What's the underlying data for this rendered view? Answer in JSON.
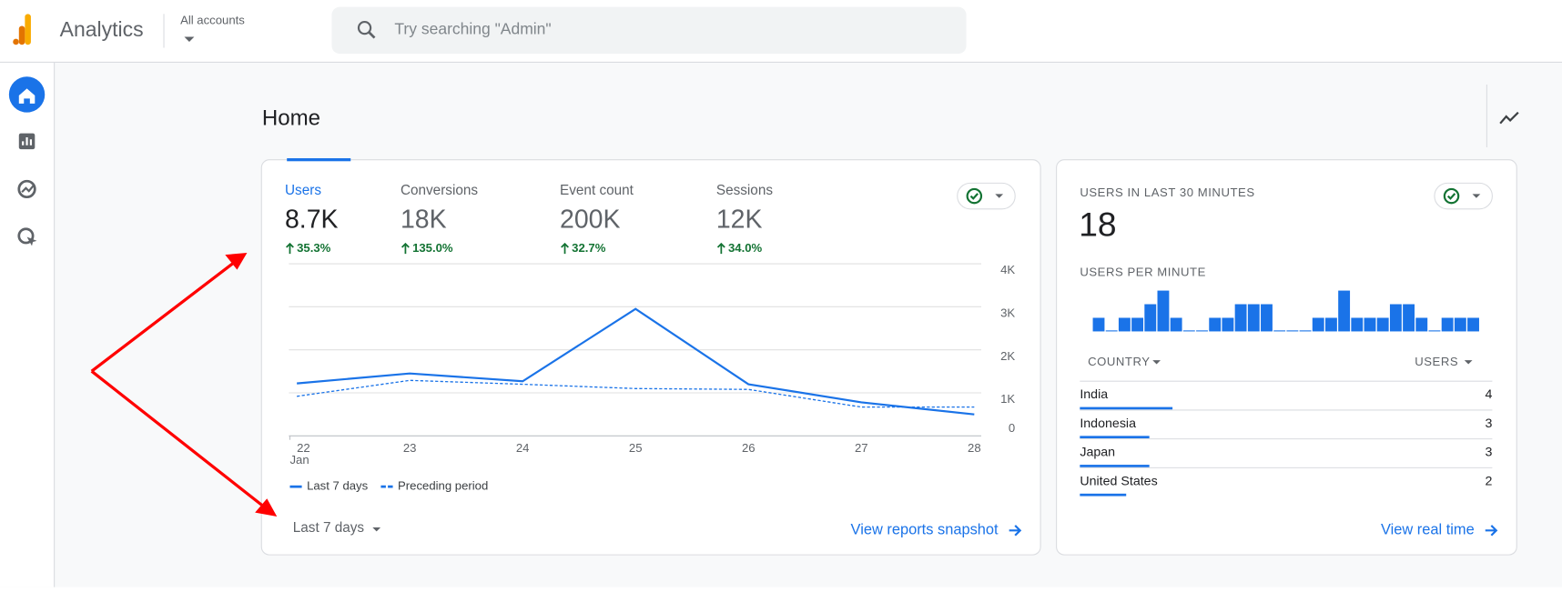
{
  "header": {
    "app_name": "Analytics",
    "account_label": "All accounts",
    "search_placeholder": "Try searching \"Admin\""
  },
  "page_title": "Home",
  "overview_card": {
    "metrics": [
      {
        "name": "Users",
        "value": "8.7K",
        "change": "35.3%"
      },
      {
        "name": "Conversions",
        "value": "18K",
        "change": "135.0%"
      },
      {
        "name": "Event count",
        "value": "200K",
        "change": "32.7%"
      },
      {
        "name": "Sessions",
        "value": "12K",
        "change": "34.0%"
      }
    ],
    "chart": {
      "type": "line",
      "categories": [
        "22",
        "23",
        "24",
        "25",
        "26",
        "27",
        "28"
      ],
      "month_label": "Jan",
      "series": [
        {
          "name": "Last 7 days",
          "color": "#1a73e8",
          "values": [
            1220,
            1450,
            1270,
            2950,
            1200,
            780,
            500
          ]
        },
        {
          "name": "Preceding period",
          "color": "#1a73e8",
          "values": [
            920,
            1290,
            1200,
            1100,
            1080,
            670,
            670
          ]
        }
      ],
      "ylim": [
        0,
        4000
      ],
      "yticks": [
        0,
        {
          "value": 1000,
          "label": "1K"
        },
        {
          "value": 2000,
          "label": "2K"
        },
        {
          "value": 3000,
          "label": "3K"
        },
        {
          "value": 4000,
          "label": "4K"
        }
      ],
      "grid": true
    },
    "date_range": "Last 7 days",
    "link": "View reports snapshot"
  },
  "realtime_card": {
    "title": "USERS IN LAST 30 MINUTES",
    "value": 18,
    "chart_title": "USERS PER MINUTE",
    "chart": {
      "type": "bar",
      "color": "#1a73e8",
      "values": [
        1,
        0,
        1,
        1,
        2,
        3,
        1,
        0,
        0,
        1,
        1,
        2,
        2,
        2,
        0,
        0,
        0,
        1,
        1,
        3,
        1,
        1,
        1,
        2,
        2,
        1,
        0,
        1,
        1,
        1
      ]
    },
    "table": {
      "headers": [
        "COUNTRY",
        "USERS"
      ],
      "rows": [
        [
          "India",
          4
        ],
        [
          "Indonesia",
          3
        ],
        [
          "Japan",
          3
        ],
        [
          "United States",
          2
        ]
      ]
    },
    "link": "View real time"
  }
}
